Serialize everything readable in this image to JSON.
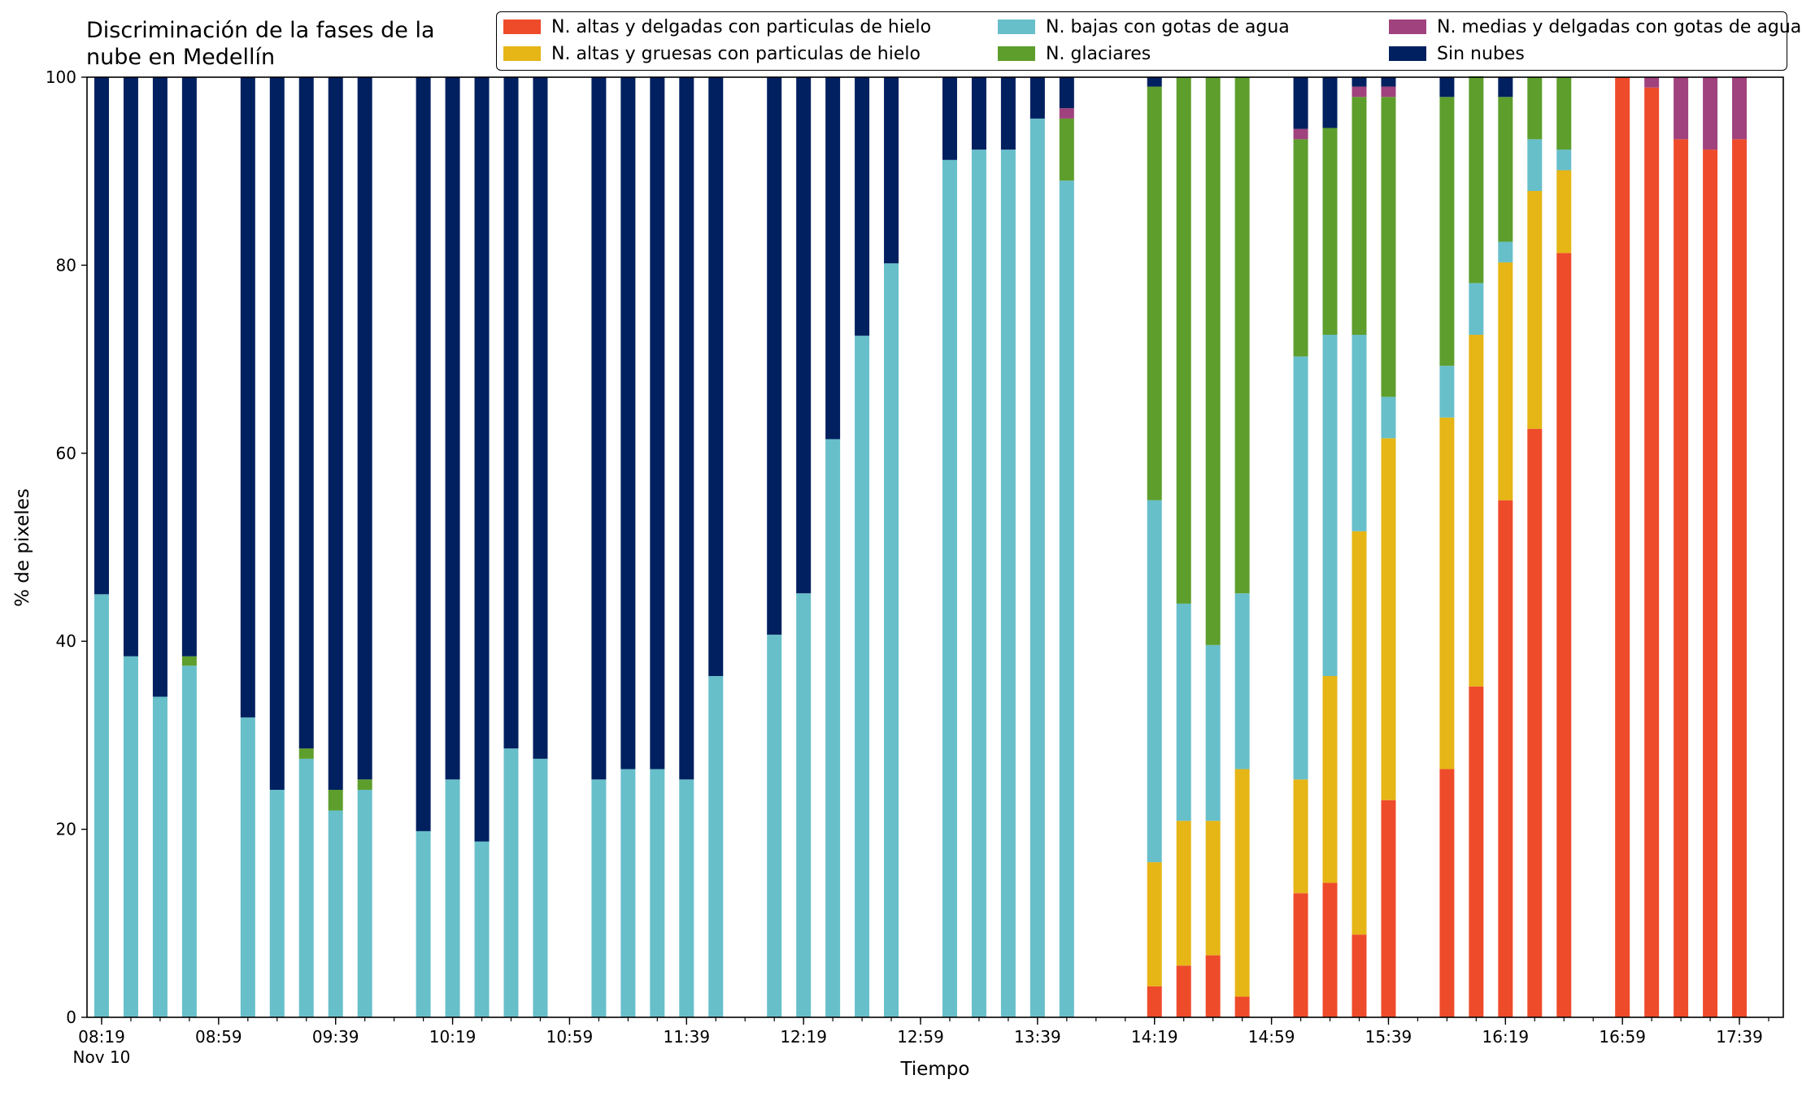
{
  "chart_data": {
    "type": "bar",
    "stacked": true,
    "title": [
      "Discriminación de la fases de la",
      "nube en Medellín"
    ],
    "xlabel": "Tiempo",
    "ylabel": "% de pixeles",
    "ylim": [
      0,
      100
    ],
    "yticks": [
      0,
      20,
      40,
      60,
      80,
      100
    ],
    "x_range": [
      "2020-11-10 08:14",
      "2020-11-10 17:54"
    ],
    "xticks": [
      {
        "time": "08:19",
        "label": "08:19",
        "sublabel": "Nov 10"
      },
      {
        "time": "08:59",
        "label": "08:59"
      },
      {
        "time": "09:39",
        "label": "09:39"
      },
      {
        "time": "10:19",
        "label": "10:19"
      },
      {
        "time": "10:59",
        "label": "10:59"
      },
      {
        "time": "11:39",
        "label": "11:39"
      },
      {
        "time": "12:19",
        "label": "12:19"
      },
      {
        "time": "12:59",
        "label": "12:59"
      },
      {
        "time": "13:39",
        "label": "13:39"
      },
      {
        "time": "14:19",
        "label": "14:19"
      },
      {
        "time": "14:59",
        "label": "14:59"
      },
      {
        "time": "15:39",
        "label": "15:39"
      },
      {
        "time": "16:19",
        "label": "16:19"
      },
      {
        "time": "16:59",
        "label": "16:59"
      },
      {
        "time": "17:39",
        "label": "17:39"
      }
    ],
    "minor_tick_step_minutes": 10,
    "legend_position": "top",
    "series": [
      {
        "name": "N. altas y delgadas con particulas de hielo",
        "color": "#ee4b2b"
      },
      {
        "name": "N. altas y gruesas con particulas de hielo",
        "color": "#e6b516"
      },
      {
        "name": "N. bajas con gotas de agua",
        "color": "#67bfca"
      },
      {
        "name": "N. glaciares",
        "color": "#5e9e2c"
      },
      {
        "name": "N. medias y delgadas con gotas de agua",
        "color": "#a0427d"
      },
      {
        "name": "Sin nubes",
        "color": "#002060"
      }
    ],
    "bars": [
      {
        "time": "08:19",
        "values": [
          0,
          0,
          45,
          0,
          0,
          55
        ]
      },
      {
        "time": "08:29",
        "values": [
          0,
          0,
          38.4,
          0,
          0,
          61.6
        ]
      },
      {
        "time": "08:39",
        "values": [
          0,
          0,
          34.1,
          0,
          0,
          65.9
        ]
      },
      {
        "time": "08:49",
        "values": [
          0,
          0,
          37.4,
          1,
          0,
          61.6
        ]
      },
      {
        "time": "09:09",
        "values": [
          0,
          0,
          31.9,
          0,
          0,
          68.1
        ]
      },
      {
        "time": "09:19",
        "values": [
          0,
          0,
          24.2,
          0,
          0,
          75.8
        ]
      },
      {
        "time": "09:29",
        "values": [
          0,
          0,
          27.5,
          1.1,
          0,
          71.4
        ]
      },
      {
        "time": "09:39",
        "values": [
          0,
          0,
          22,
          2.2,
          0,
          75.8
        ]
      },
      {
        "time": "09:49",
        "values": [
          0,
          0,
          24.2,
          1.1,
          0,
          74.7
        ]
      },
      {
        "time": "10:09",
        "values": [
          0,
          0,
          19.8,
          0,
          0,
          80.2
        ]
      },
      {
        "time": "10:19",
        "values": [
          0,
          0,
          25.3,
          0,
          0,
          74.7
        ]
      },
      {
        "time": "10:29",
        "values": [
          0,
          0,
          18.7,
          0,
          0,
          81.3
        ]
      },
      {
        "time": "10:39",
        "values": [
          0,
          0,
          28.6,
          0,
          0,
          71.4
        ]
      },
      {
        "time": "10:49",
        "values": [
          0,
          0,
          27.5,
          0,
          0,
          72.5
        ]
      },
      {
        "time": "11:09",
        "values": [
          0,
          0,
          25.3,
          0,
          0,
          74.7
        ]
      },
      {
        "time": "11:19",
        "values": [
          0,
          0,
          26.4,
          0,
          0,
          73.6
        ]
      },
      {
        "time": "11:29",
        "values": [
          0,
          0,
          26.4,
          0,
          0,
          73.6
        ]
      },
      {
        "time": "11:39",
        "values": [
          0,
          0,
          25.3,
          0,
          0,
          74.7
        ]
      },
      {
        "time": "11:49",
        "values": [
          0,
          0,
          36.3,
          0,
          0,
          63.7
        ]
      },
      {
        "time": "12:09",
        "values": [
          0,
          0,
          40.7,
          0,
          0,
          59.3
        ]
      },
      {
        "time": "12:19",
        "values": [
          0,
          0,
          45.1,
          0,
          0,
          54.9
        ]
      },
      {
        "time": "12:29",
        "values": [
          0,
          0,
          61.5,
          0,
          0,
          38.5
        ]
      },
      {
        "time": "12:39",
        "values": [
          0,
          0,
          72.5,
          0,
          0,
          27.5
        ]
      },
      {
        "time": "12:49",
        "values": [
          0,
          0,
          80.2,
          0,
          0,
          19.8
        ]
      },
      {
        "time": "13:09",
        "values": [
          0,
          0,
          91.2,
          0,
          0,
          8.8
        ]
      },
      {
        "time": "13:19",
        "values": [
          0,
          0,
          92.3,
          0,
          0,
          7.7
        ]
      },
      {
        "time": "13:29",
        "values": [
          0,
          0,
          92.3,
          0,
          0,
          7.7
        ]
      },
      {
        "time": "13:39",
        "values": [
          0,
          0,
          95.6,
          0,
          0,
          4.4
        ]
      },
      {
        "time": "13:49",
        "values": [
          0,
          0,
          89,
          6.6,
          1.1,
          3.3
        ]
      },
      {
        "time": "14:19",
        "values": [
          3.3,
          13.2,
          38.5,
          44,
          0,
          1
        ]
      },
      {
        "time": "14:29",
        "values": [
          5.5,
          15.4,
          23.1,
          56,
          0,
          0
        ]
      },
      {
        "time": "14:39",
        "values": [
          6.6,
          14.3,
          18.7,
          60.4,
          0,
          0
        ]
      },
      {
        "time": "14:49",
        "values": [
          2.2,
          24.2,
          18.7,
          54.9,
          0,
          0
        ]
      },
      {
        "time": "15:09",
        "values": [
          13.2,
          12.1,
          45,
          23.1,
          1.1,
          5.5
        ]
      },
      {
        "time": "15:19",
        "values": [
          14.3,
          22,
          36.3,
          22,
          0,
          5.4
        ]
      },
      {
        "time": "15:29",
        "values": [
          8.8,
          42.9,
          20.9,
          25.3,
          1.1,
          1
        ]
      },
      {
        "time": "15:39",
        "values": [
          23.1,
          38.5,
          4.4,
          31.9,
          1.1,
          1
        ]
      },
      {
        "time": "15:59",
        "values": [
          26.4,
          37.4,
          5.5,
          28.6,
          0,
          2.1
        ]
      },
      {
        "time": "16:09",
        "values": [
          35.2,
          37.4,
          5.5,
          22,
          0,
          0
        ]
      },
      {
        "time": "16:19",
        "values": [
          55,
          25.3,
          2.2,
          15.4,
          0,
          2.1
        ]
      },
      {
        "time": "16:29",
        "values": [
          62.6,
          25.3,
          5.5,
          6.6,
          0,
          0
        ]
      },
      {
        "time": "16:39",
        "values": [
          81.3,
          8.8,
          2.2,
          7.7,
          0,
          0
        ]
      },
      {
        "time": "16:59",
        "values": [
          100,
          0,
          0,
          0,
          0,
          0
        ]
      },
      {
        "time": "17:09",
        "values": [
          98.9,
          0,
          0,
          0,
          1.1,
          0
        ]
      },
      {
        "time": "17:19",
        "values": [
          93.4,
          0,
          0,
          0,
          6.6,
          0
        ]
      },
      {
        "time": "17:29",
        "values": [
          92.3,
          0,
          0,
          0,
          7.7,
          0
        ]
      },
      {
        "time": "17:39",
        "values": [
          93.4,
          0,
          0,
          0,
          6.6,
          0
        ]
      }
    ]
  }
}
